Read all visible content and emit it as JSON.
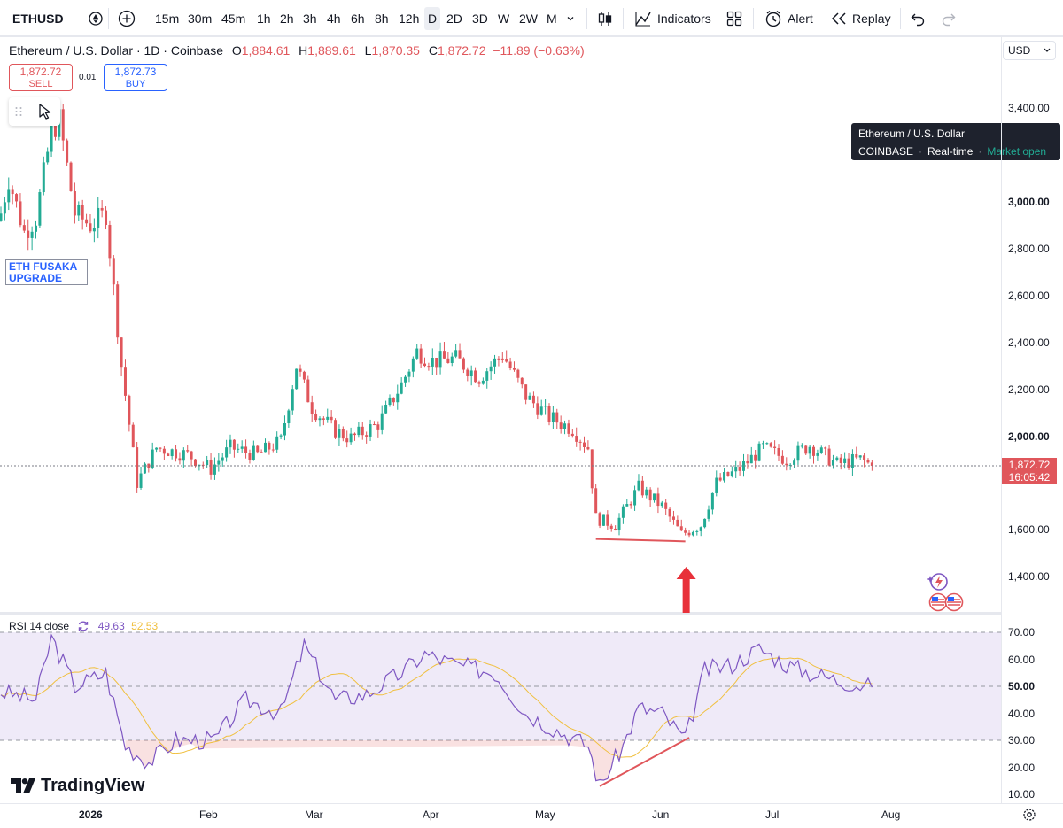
{
  "toolbar": {
    "symbol": "ETHUSD",
    "intervals": [
      "15m",
      "30m",
      "45m",
      "1h",
      "2h",
      "3h",
      "4h",
      "6h",
      "8h",
      "12h",
      "D",
      "2D",
      "3D",
      "W",
      "2W",
      "M"
    ],
    "active_interval": "D",
    "indicators_label": "Indicators",
    "alert_label": "Alert",
    "replay_label": "Replay"
  },
  "legend": {
    "title": "Ethereum / U.S. Dollar · 1D · Coinbase",
    "open_label": "O",
    "open": "1,884.61",
    "high_label": "H",
    "high": "1,889.61",
    "low_label": "L",
    "low": "1,870.35",
    "close_label": "C",
    "close": "1,872.72",
    "change": "−11.89 (−0.63%)"
  },
  "trade": {
    "sell_price": "1,872.72",
    "sell_label": "SELL",
    "spread": "0.01",
    "buy_price": "1,872.73",
    "buy_label": "BUY"
  },
  "annotation": {
    "line1": "ETH FUSAKA",
    "line2": "UPGRADE"
  },
  "tooltip": {
    "title": "Ethereum / U.S. Dollar",
    "exchange": "COINBASE",
    "mode": "Real-time",
    "status": "Market open"
  },
  "price_axis": {
    "currency": "USD",
    "ticks": [
      "3,400.00",
      "3,000.00",
      "2,800.00",
      "2,600.00",
      "2,400.00",
      "2,200.00",
      "2,000.00",
      "1,600.00",
      "1,400.00"
    ],
    "last_price": "1,872.72",
    "countdown": "16:05:42"
  },
  "rsi": {
    "label": "RSI 14 close",
    "value": "49.63",
    "ma_value": "52.53",
    "ticks": [
      "70.00",
      "60.00",
      "50.00",
      "40.00",
      "30.00",
      "20.00",
      "10.00"
    ]
  },
  "time_axis": {
    "labels": [
      "2026",
      "Feb",
      "Mar",
      "Apr",
      "May",
      "Jun",
      "Jul",
      "Aug"
    ]
  },
  "brand": "TradingView",
  "colors": {
    "up": "#22ab94",
    "down": "#e0565b",
    "rsi": "#7e57c2",
    "rsi_ma": "#f0c040",
    "accent": "#2962ff"
  },
  "chart_data": {
    "type": "candlestick",
    "price_range": [
      1300,
      3480
    ],
    "anchor_closes": [
      [
        "Jan 1",
        2950
      ],
      [
        "Jan 3",
        3100
      ],
      [
        "Jan 7",
        2870
      ],
      [
        "Jan 10",
        2930
      ],
      [
        "Jan 14",
        3300
      ],
      [
        "Jan 16",
        3350
      ],
      [
        "Jan 20",
        2950
      ],
      [
        "Jan 24",
        2900
      ],
      [
        "Jan 28",
        2950
      ],
      [
        "Feb 1",
        2300
      ],
      [
        "Feb 5",
        1800
      ],
      [
        "Feb 10",
        1950
      ],
      [
        "Feb 18",
        1920
      ],
      [
        "Feb 24",
        1860
      ],
      [
        "Mar 1",
        1950
      ],
      [
        "Mar 8",
        1920
      ],
      [
        "Mar 14",
        1980
      ],
      [
        "Mar 18",
        2300
      ],
      [
        "Mar 22",
        2120
      ],
      [
        "Mar 28",
        2020
      ],
      [
        "Apr 1",
        1990
      ],
      [
        "Apr 8",
        2050
      ],
      [
        "Apr 14",
        2220
      ],
      [
        "Apr 18",
        2360
      ],
      [
        "Apr 22",
        2320
      ],
      [
        "Apr 28",
        2330
      ],
      [
        "May 4",
        2250
      ],
      [
        "May 10",
        2350
      ],
      [
        "May 16",
        2170
      ],
      [
        "May 22",
        2080
      ],
      [
        "May 28",
        2030
      ],
      [
        "Jun 1",
        1950
      ],
      [
        "Jun 3",
        1650
      ],
      [
        "Jun 8",
        1620
      ],
      [
        "Jun 14",
        1780
      ],
      [
        "Jun 20",
        1700
      ],
      [
        "Jun 25",
        1580
      ],
      [
        "Jun 30",
        1620
      ],
      [
        "Jul 4",
        1800
      ],
      [
        "Jul 10",
        1860
      ],
      [
        "Jul 16",
        1950
      ],
      [
        "Jul 22",
        1900
      ],
      [
        "Jul 28",
        1960
      ],
      [
        "Aug 4",
        1880
      ],
      [
        "Aug 10",
        1900
      ],
      [
        "Aug 13",
        1872.72
      ]
    ],
    "rsi_range": [
      10,
      70
    ],
    "rsi_anchors": [
      [
        "Jan 1",
        48
      ],
      [
        "Jan 10",
        45
      ],
      [
        "Jan 14",
        68
      ],
      [
        "Jan 20",
        50
      ],
      [
        "Jan 28",
        55
      ],
      [
        "Feb 2",
        28
      ],
      [
        "Feb 8",
        22
      ],
      [
        "Feb 15",
        30
      ],
      [
        "Feb 25",
        30
      ],
      [
        "Mar 5",
        45
      ],
      [
        "Mar 14",
        40
      ],
      [
        "Mar 20",
        65
      ],
      [
        "Mar 28",
        45
      ],
      [
        "Apr 5",
        47
      ],
      [
        "Apr 14",
        55
      ],
      [
        "Apr 20",
        62
      ],
      [
        "Apr 28",
        58
      ],
      [
        "May 8",
        55
      ],
      [
        "May 16",
        40
      ],
      [
        "May 25",
        33
      ],
      [
        "Jun 1",
        28
      ],
      [
        "Jun 4",
        13
      ],
      [
        "Jun 10",
        28
      ],
      [
        "Jun 14",
        42
      ],
      [
        "Jun 20",
        40
      ],
      [
        "Jun 26",
        30
      ],
      [
        "Jul 1",
        56
      ],
      [
        "Jul 8",
        58
      ],
      [
        "Jul 15",
        64
      ],
      [
        "Jul 22",
        58
      ],
      [
        "Jul 28",
        55
      ],
      [
        "Aug 5",
        52
      ],
      [
        "Aug 13",
        49.63
      ]
    ],
    "divergence_price_line": [
      [
        "Jun 3",
        1560
      ],
      [
        "Jun 26",
        1550
      ]
    ],
    "divergence_rsi_line": [
      [
        "Jun 4",
        13
      ],
      [
        "Jun 27",
        31
      ]
    ],
    "arrow_at": "Jun 26"
  }
}
